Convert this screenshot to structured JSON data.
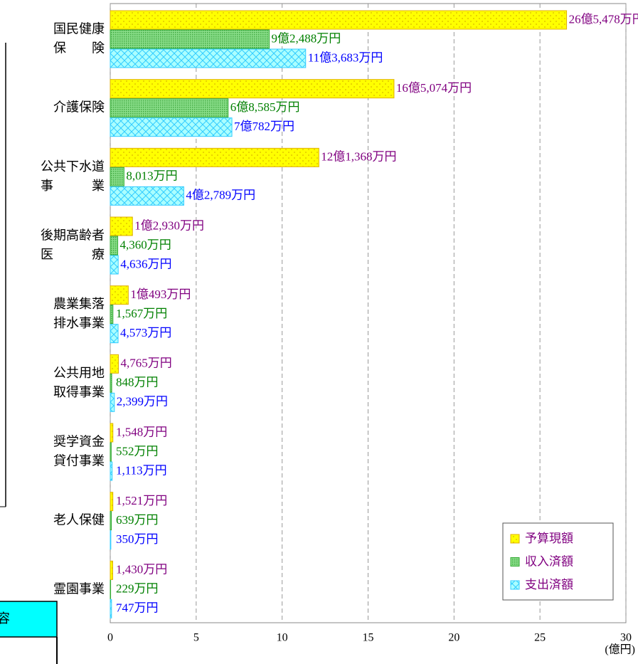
{
  "fragment": {
    "box_text": "容"
  },
  "chart_data": {
    "type": "bar",
    "orientation": "horizontal",
    "categories": [
      "国民健康\n保　　険",
      "介護保険",
      "公共下水道\n事　　　業",
      "後期高齢者\n医　　　療",
      "農業集落\n排水事業",
      "公共用地\n取得事業",
      "奨学資金\n貸付事業",
      "老人保健",
      "霊園事業"
    ],
    "series": [
      {
        "name": "予算現額",
        "color": "#ffff00",
        "stroke": "#e0b000",
        "label_color": "#800080",
        "values": [
          26.5478,
          16.5074,
          12.1368,
          1.293,
          1.0493,
          0.4765,
          0.1548,
          0.1521,
          0.143
        ],
        "value_labels": [
          "26億5,478万円",
          "16億5,074万円",
          "12億1,368万円",
          "1億2,930万円",
          "1億493万円",
          "4,765万円",
          "1,548万円",
          "1,521万円",
          "1,430万円"
        ]
      },
      {
        "name": "収入済額",
        "color": "#66cc66",
        "stroke": "#33aa33",
        "label_color": "#008000",
        "values": [
          9.2488,
          6.8585,
          0.8013,
          0.436,
          0.1567,
          0.0848,
          0.0552,
          0.0639,
          0.0229
        ],
        "value_labels": [
          "9億2,488万円",
          "6億8,585万円",
          "8,013万円",
          "4,360万円",
          "1,567万円",
          "848万円",
          "552万円",
          "639万円",
          "229万円"
        ]
      },
      {
        "name": "支出済額",
        "color": "#99ffff",
        "stroke": "#33ccff",
        "label_color": "#0000ff",
        "values": [
          11.3683,
          7.0782,
          4.2789,
          0.4636,
          0.4573,
          0.2399,
          0.1113,
          0.035,
          0.0747
        ],
        "value_labels": [
          "11億3,683万円",
          "7億782万円",
          "4億2,789万円",
          "4,636万円",
          "4,573万円",
          "2,399万円",
          "1,113万円",
          "350万円",
          "747万円"
        ]
      }
    ],
    "xlim": [
      0,
      30
    ],
    "xticks": [
      0,
      5,
      10,
      15,
      20,
      25,
      30
    ],
    "x_unit": "(億円)",
    "grid": true,
    "legend_position": "lower right"
  }
}
